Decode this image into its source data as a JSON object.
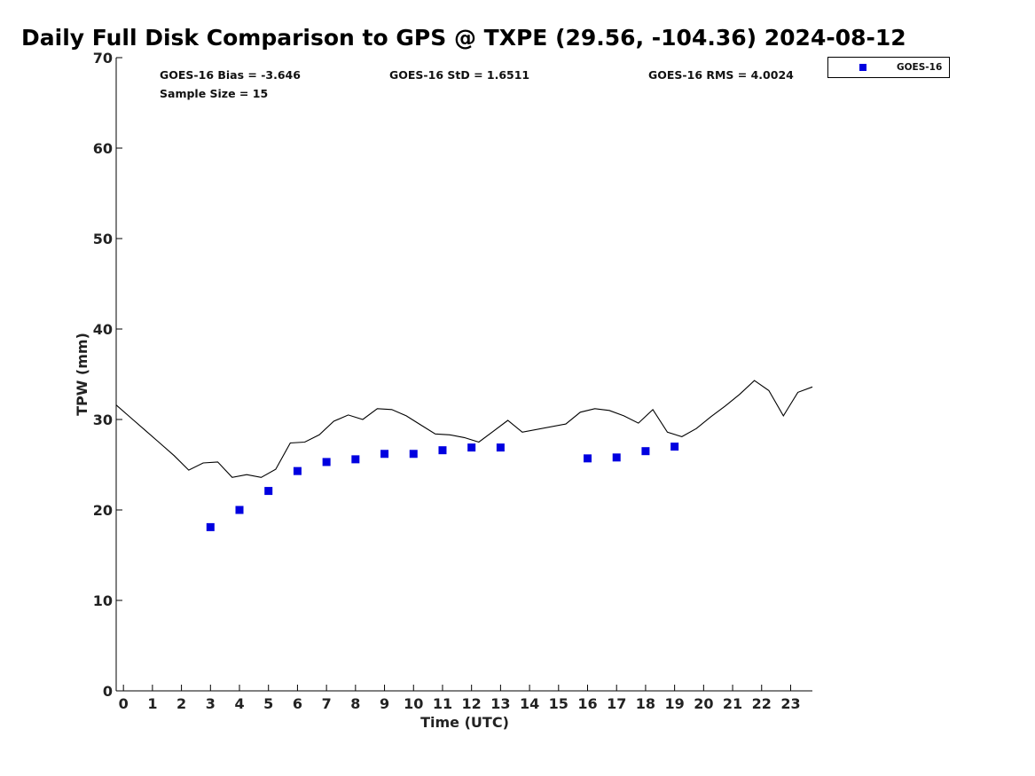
{
  "chart_data": {
    "type": "scatter",
    "title": "Daily Full Disk Comparison to GPS @ TXPE (29.56, -104.36) 2024-08-12",
    "xlabel": "Time (UTC)",
    "ylabel": "TPW (mm)",
    "xlim": [
      -0.25,
      23.75
    ],
    "ylim": [
      0,
      70
    ],
    "xticks": [
      0,
      1,
      2,
      3,
      4,
      5,
      6,
      7,
      8,
      9,
      10,
      11,
      12,
      13,
      14,
      15,
      16,
      17,
      18,
      19,
      20,
      21,
      22,
      23
    ],
    "yticks": [
      0,
      10,
      20,
      30,
      40,
      50,
      60,
      70
    ],
    "grid": false,
    "legend_position": "outside-top-right",
    "stats": {
      "bias": "GOES-16 Bias = -3.646",
      "std": "GOES-16 StD = 1.6511",
      "rms": "GOES-16 RMS = 4.0024",
      "sample": "Sample Size = 15"
    },
    "series": [
      {
        "name": "GOES-16",
        "kind": "scatter",
        "color": "#0000e0",
        "x": [
          3,
          4,
          5,
          6,
          7,
          8,
          9,
          10,
          11,
          12,
          13,
          16,
          17,
          18,
          19
        ],
        "y": [
          18.1,
          20.0,
          22.1,
          24.3,
          25.3,
          25.6,
          26.2,
          26.2,
          26.6,
          26.9,
          26.9,
          25.7,
          25.8,
          26.5,
          27.0
        ]
      },
      {
        "kind": "line",
        "color": "#000000",
        "x": [
          -0.25,
          0.25,
          0.75,
          1.25,
          1.75,
          2.25,
          2.75,
          3.25,
          3.75,
          4.25,
          4.75,
          5.25,
          5.75,
          6.25,
          6.75,
          7.25,
          7.75,
          8.25,
          8.75,
          9.25,
          9.75,
          10.25,
          10.75,
          11.25,
          11.75,
          12.25,
          12.75,
          13.25,
          13.75,
          15.25,
          15.75,
          16.25,
          16.75,
          17.25,
          17.75,
          18.25,
          18.75,
          19.25,
          19.75,
          20.25,
          20.75,
          21.25,
          21.75,
          22.25,
          22.75,
          23.25,
          23.75
        ],
        "y": [
          31.6,
          30.2,
          28.8,
          27.4,
          26.0,
          24.4,
          25.2,
          25.3,
          23.6,
          23.9,
          23.6,
          24.5,
          27.4,
          27.5,
          28.3,
          29.8,
          30.5,
          30.0,
          31.2,
          31.1,
          30.4,
          29.4,
          28.4,
          28.3,
          28.0,
          27.5,
          28.7,
          29.9,
          28.6,
          29.5,
          30.8,
          31.2,
          31.0,
          30.4,
          29.6,
          31.1,
          28.6,
          28.1,
          29.0,
          30.3,
          31.5,
          32.8,
          34.3,
          33.2,
          30.4,
          33.0,
          33.6
        ]
      }
    ]
  }
}
